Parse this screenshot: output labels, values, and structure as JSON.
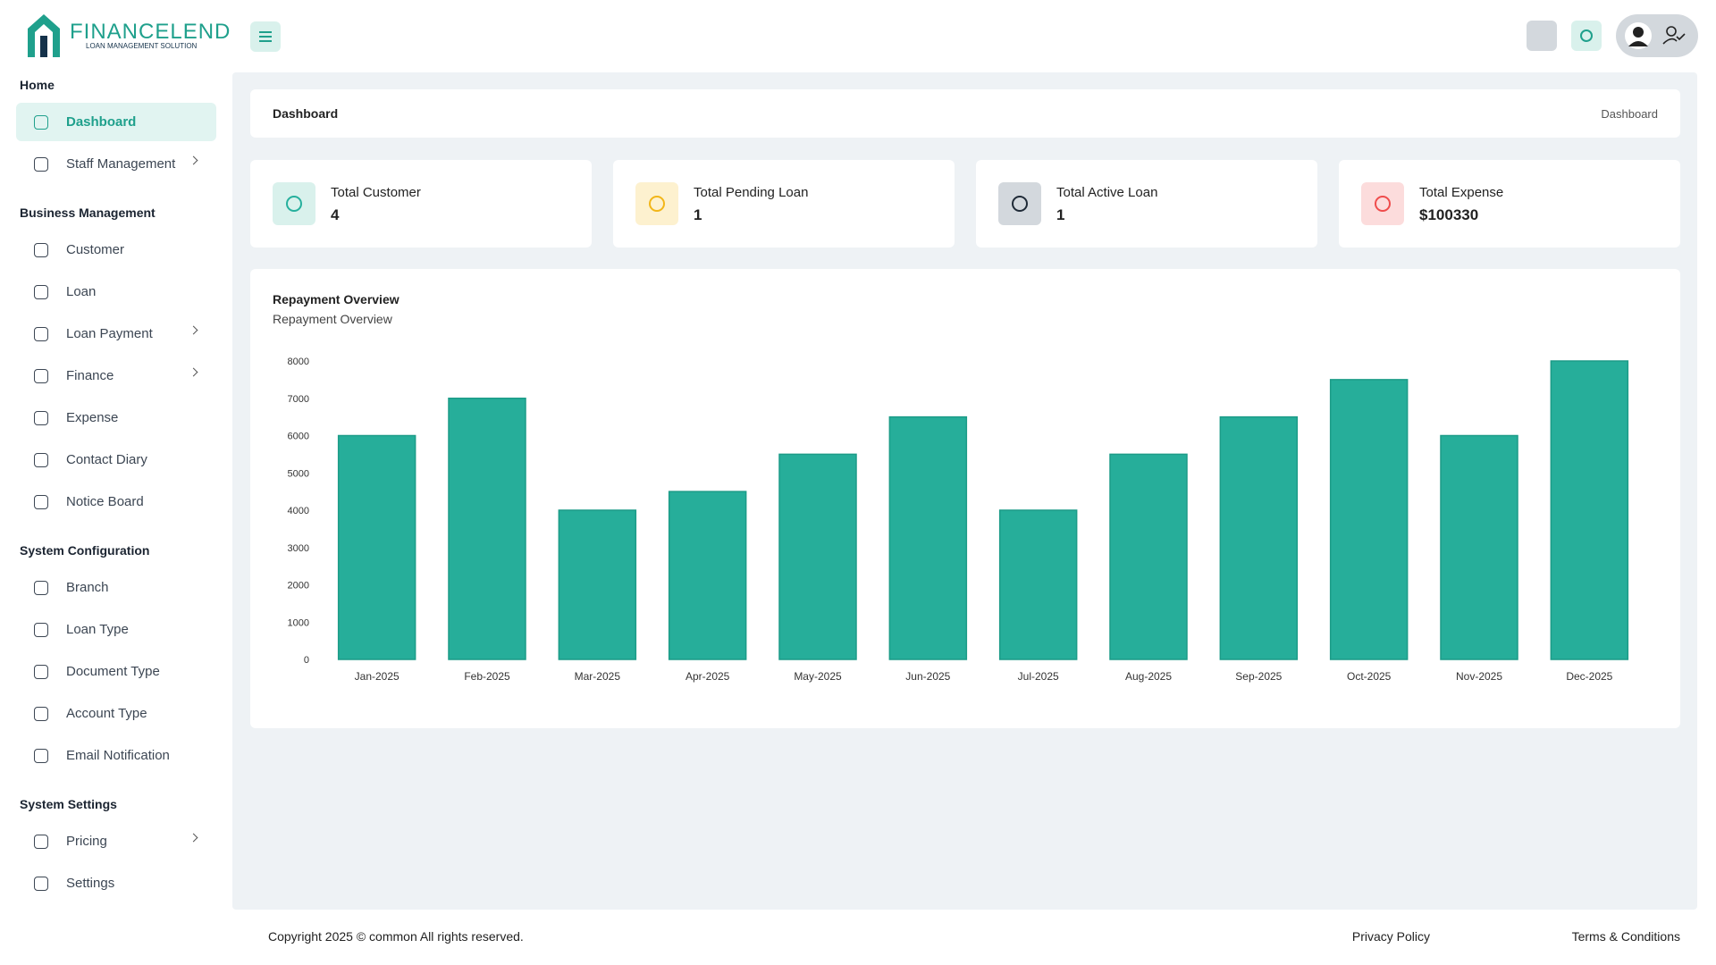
{
  "brand": {
    "name": "FINANCELEND",
    "tagline": "LOAN MANAGEMENT SOLUTION"
  },
  "sidebar": [
    {
      "heading": "Home",
      "items": [
        {
          "label": "Dashboard",
          "active": true
        },
        {
          "label": "Staff Management",
          "has_submenu": true
        }
      ]
    },
    {
      "heading": "Business Management",
      "items": [
        {
          "label": "Customer"
        },
        {
          "label": "Loan"
        },
        {
          "label": "Loan Payment",
          "has_submenu": true
        },
        {
          "label": "Finance",
          "has_submenu": true
        },
        {
          "label": "Expense"
        },
        {
          "label": "Contact Diary"
        },
        {
          "label": "Notice Board"
        }
      ]
    },
    {
      "heading": "System Configuration",
      "items": [
        {
          "label": "Branch"
        },
        {
          "label": "Loan Type"
        },
        {
          "label": "Document Type"
        },
        {
          "label": "Account Type"
        },
        {
          "label": "Email Notification"
        }
      ]
    },
    {
      "heading": "System Settings",
      "items": [
        {
          "label": "Pricing",
          "has_submenu": true
        },
        {
          "label": "Settings"
        }
      ]
    }
  ],
  "page": {
    "title": "Dashboard",
    "breadcrumb": "Dashboard"
  },
  "stats": [
    {
      "label": "Total Customer",
      "value": "4",
      "color": "#26b09d",
      "bg": "#d9f1ec"
    },
    {
      "label": "Total Pending Loan",
      "value": "1",
      "color": "#f2b619",
      "bg": "#fdf1cf"
    },
    {
      "label": "Total Active Loan",
      "value": "1",
      "color": "#1f2a37",
      "bg": "#d3d8dd"
    },
    {
      "label": "Total Expense",
      "value": "$100330",
      "color": "#ef4c4c",
      "bg": "#fcdcdc"
    }
  ],
  "chart_data": {
    "type": "bar",
    "title": "Repayment Overview",
    "subtitle": "Repayment Overview",
    "categories": [
      "Jan-2025",
      "Feb-2025",
      "Mar-2025",
      "Apr-2025",
      "May-2025",
      "Jun-2025",
      "Jul-2025",
      "Aug-2025",
      "Sep-2025",
      "Oct-2025",
      "Nov-2025",
      "Dec-2025"
    ],
    "values": [
      6000,
      7000,
      4000,
      4500,
      5500,
      6500,
      4000,
      5500,
      6500,
      7500,
      6000,
      8000
    ],
    "color": "#26ae9a",
    "ylim": [
      0,
      8000
    ],
    "yticks": [
      0,
      1000,
      2000,
      3000,
      4000,
      5000,
      6000,
      7000,
      8000
    ],
    "grid": false
  },
  "footer": {
    "copyright": "Copyright 2025 © common All rights reserved.",
    "links": [
      "Privacy Policy",
      "Terms & Conditions"
    ]
  }
}
